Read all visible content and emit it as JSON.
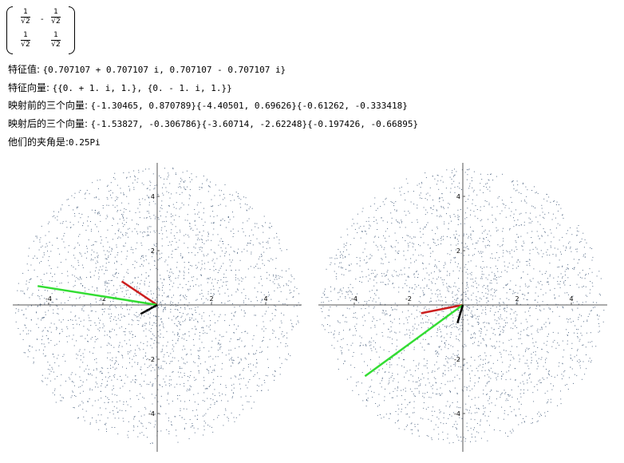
{
  "matrix": {
    "r1c1": {
      "num": "1",
      "rad": "2",
      "sign": ""
    },
    "r1c2": {
      "num": "1",
      "rad": "2",
      "sign": "-"
    },
    "r2c1": {
      "num": "1",
      "rad": "2",
      "sign": ""
    },
    "r2c2": {
      "num": "1",
      "rad": "2",
      "sign": ""
    }
  },
  "eigenvalues": {
    "label": "特征值:",
    "value": "{0.707107 + 0.707107 i, 0.707107 - 0.707107 i}"
  },
  "eigenvectors": {
    "label": "特征向量:",
    "value": "{{0. + 1. i, 1.}, {0. - 1. i, 1.}}"
  },
  "before": {
    "label": "映射前的三个向量:",
    "value": "{-1.30465, 0.870789}{-4.40501, 0.69626}{-0.61262, -0.333418}"
  },
  "after": {
    "label": "映射后的三个向量:",
    "value": "{-1.53827, -0.306786}{-3.60714, -2.62248}{-0.197426, -0.66895}"
  },
  "angle": {
    "label": "他们的夹角是:",
    "value": "0.25Pi"
  },
  "colors": {
    "points": "#5a6f8a",
    "vector_red": "#cc1f1f",
    "vector_green": "#33dd33",
    "vector_black": "#000000"
  },
  "chart_data": [
    {
      "type": "scatter",
      "title": "",
      "xlim": [
        -5.2,
        5
      ],
      "ylim": [
        -5.2,
        5
      ],
      "xticks": [
        "-4",
        "-2",
        "2",
        "4"
      ],
      "yticks": [
        "4",
        "2",
        "-2",
        "-4"
      ],
      "xtick_values": [
        -4,
        -2,
        2,
        4
      ],
      "ytick_values": [
        4,
        2,
        -2,
        -4
      ],
      "point_cloud": "random points in a disk of radius ~5 around the origin",
      "vectors": [
        {
          "x": -1.30465,
          "y": 0.870789,
          "color": "red"
        },
        {
          "x": -4.40501,
          "y": 0.69626,
          "color": "green"
        },
        {
          "x": -0.61262,
          "y": -0.333418,
          "color": "black"
        }
      ]
    },
    {
      "type": "scatter",
      "title": "",
      "xlim": [
        -5.2,
        5
      ],
      "ylim": [
        -5.2,
        5
      ],
      "xticks": [
        "-4",
        "-2",
        "2",
        "4"
      ],
      "yticks": [
        "4",
        "2",
        "-2",
        "-4"
      ],
      "xtick_values": [
        -4,
        -2,
        2,
        4
      ],
      "ytick_values": [
        4,
        2,
        -2,
        -4
      ],
      "point_cloud": "random points in a disk of radius ~5 around the origin",
      "vectors": [
        {
          "x": -1.53827,
          "y": -0.306786,
          "color": "red"
        },
        {
          "x": -3.60714,
          "y": -2.62248,
          "color": "green"
        },
        {
          "x": -0.197426,
          "y": -0.66895,
          "color": "black"
        }
      ]
    }
  ]
}
